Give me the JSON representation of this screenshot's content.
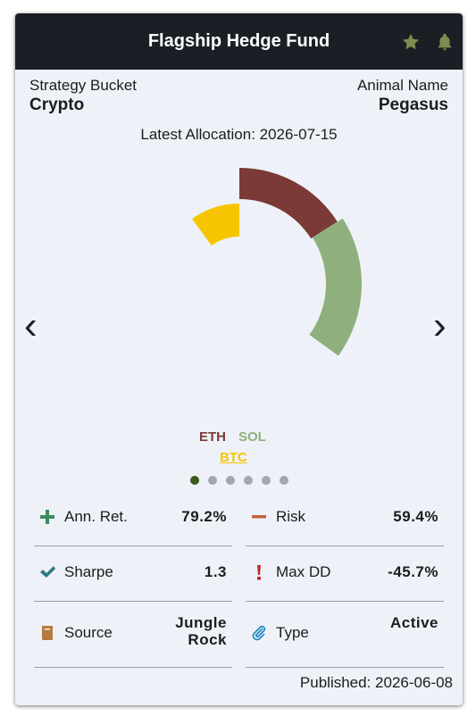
{
  "header": {
    "title": "Flagship Hedge Fund"
  },
  "info": {
    "strategy_label": "Strategy Bucket",
    "strategy": "Crypto",
    "animal_label": "Animal Name",
    "animal": "Pegasus",
    "allocation": "Latest Allocation: 2026-07-15"
  },
  "chart_data": {
    "type": "radial",
    "categories": [
      "ETH",
      "SOL",
      "BTC"
    ],
    "values": [
      16,
      19,
      10
    ],
    "colors": [
      "#7b3a36",
      "#8fb07d",
      "#f6c500"
    ]
  },
  "metrics": [
    {
      "label": "Ann. Ret.",
      "value": "79.2%"
    },
    {
      "label": "Risk",
      "value": "59.4%"
    },
    {
      "label": "Sharpe",
      "value": "1.3"
    },
    {
      "label": "Max DD",
      "value": "-45.7%"
    },
    {
      "label": "Source",
      "value": "Jungle Rock"
    },
    {
      "label": "Type",
      "value": "Active"
    }
  ],
  "footer": {
    "published": "Published: 2026-06-08"
  }
}
